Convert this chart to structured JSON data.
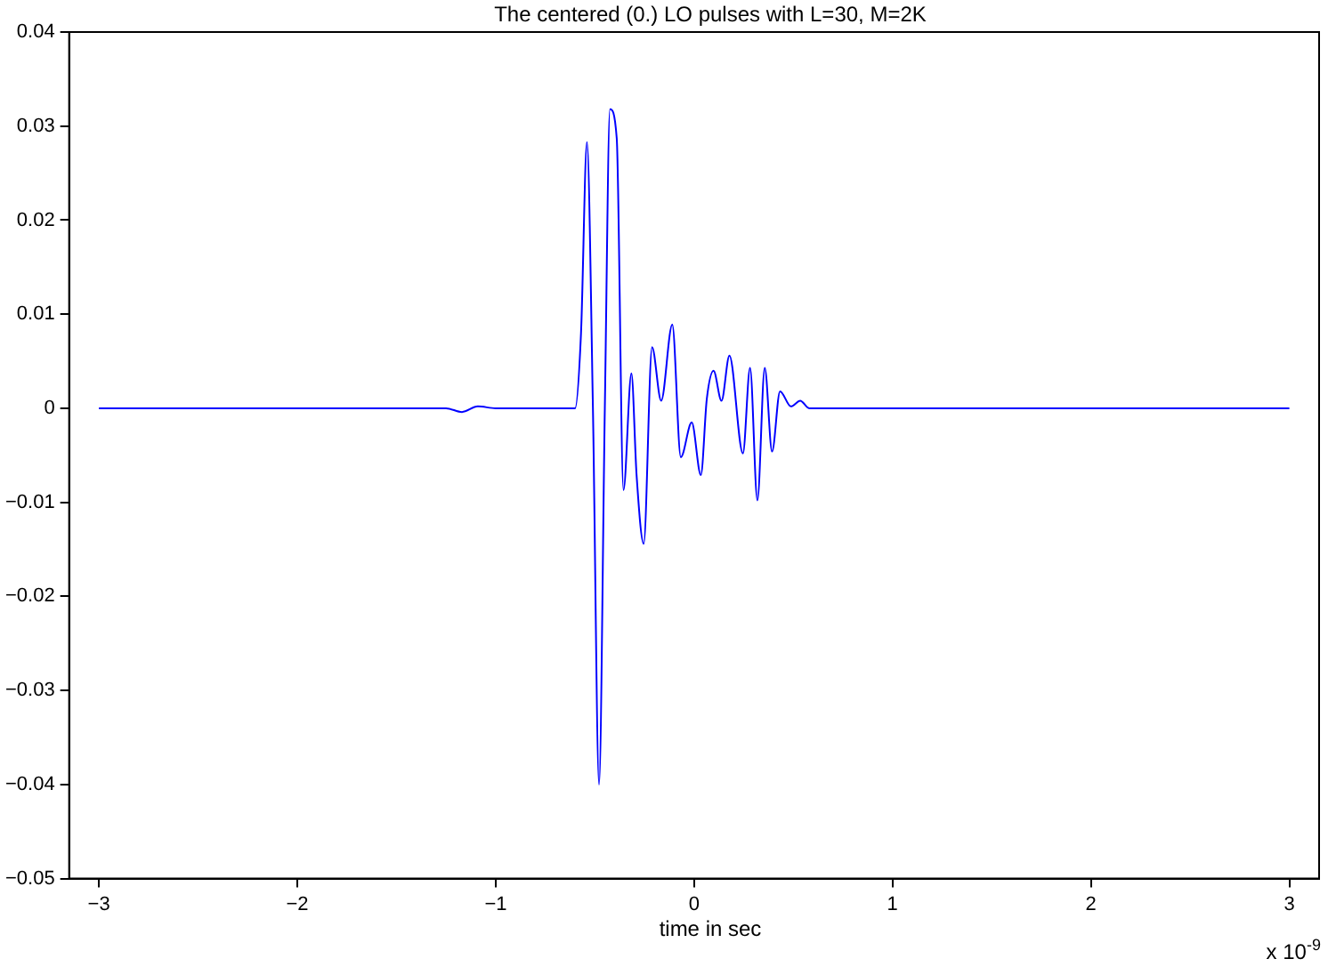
{
  "chart_data": {
    "type": "line",
    "title": "The centered (0.) LO pulses with L=30, M=2K",
    "xlabel": "time in sec",
    "annotations": [
      "x 10$^{-9}$"
    ],
    "series": [
      {
        "color": "#0000ff",
        "x": [
          -3,
          -1.25,
          -1.17,
          -1.09,
          -1.0,
          -0.6,
          -0.57,
          -0.54,
          -0.51,
          -0.479,
          -0.45,
          -0.424,
          -0.39,
          -0.356,
          -0.316,
          -0.29,
          -0.254,
          -0.212,
          -0.166,
          -0.11,
          -0.067,
          -0.012,
          0.034,
          0.064,
          0.098,
          0.138,
          0.178,
          0.246,
          0.282,
          0.319,
          0.356,
          0.393,
          0.433,
          0.488,
          0.535,
          0.58,
          1.0,
          3
        ],
        "values": [
          0,
          0,
          -0.0004,
          0.0002,
          0,
          0,
          0.008,
          0.0283,
          0,
          -0.04,
          0,
          0.0318,
          0.0287,
          -0.0087,
          0.0037,
          -0.0071,
          -0.0144,
          0.0065,
          0.0008,
          0.0089,
          -0.0052,
          -0.0015,
          -0.0071,
          0.001,
          0.004,
          0.0008,
          0.0056,
          -0.0048,
          0.0043,
          -0.0098,
          0.0043,
          -0.0046,
          0.0018,
          0.0002,
          0.0008,
          0,
          0,
          0
        ]
      }
    ],
    "xlim": [
      -3.15,
      3.15
    ],
    "xticks": [
      {
        "value": -3,
        "label": "−3"
      },
      {
        "value": -2,
        "label": "−2"
      },
      {
        "value": -1,
        "label": "−1"
      },
      0,
      1,
      2,
      3
    ],
    "ylim": [
      -0.05,
      0.04
    ],
    "yticks": [
      {
        "value": -0.05,
        "label": "−0.05"
      },
      {
        "value": -0.04,
        "label": "−0.04"
      },
      {
        "value": -0.03,
        "label": "−0.03"
      },
      {
        "value": -0.02,
        "label": "−0.02"
      },
      {
        "value": -0.01,
        "label": "−0.01"
      },
      0,
      0.01,
      0.02,
      0.03,
      0.04
    ],
    "grid": false,
    "legend": false,
    "marker": "none",
    "line_style": "solid"
  }
}
